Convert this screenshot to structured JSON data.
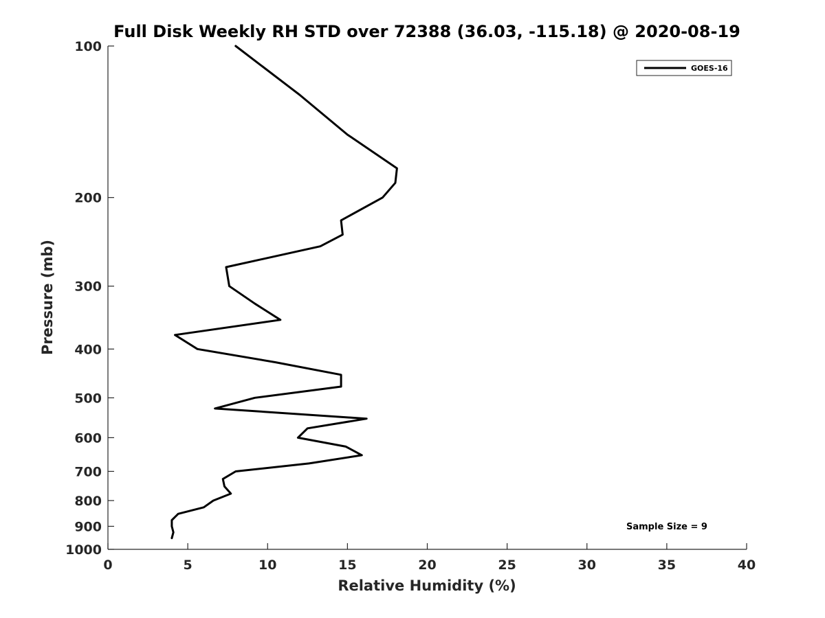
{
  "chart_data": {
    "type": "line",
    "title": "Full Disk Weekly RH STD over 72388 (36.03, -115.18) @ 2020-08-19",
    "xlabel": "Relative Humidity (%)",
    "ylabel": "Pressure (mb)",
    "xlim": [
      0,
      40
    ],
    "ylim": [
      1000,
      100
    ],
    "yscale": "log",
    "y_reversed": true,
    "xticks": [
      0,
      5,
      10,
      15,
      20,
      25,
      30,
      35,
      40
    ],
    "xtick_labels": [
      "0",
      "5",
      "10",
      "15",
      "20",
      "25",
      "30",
      "35",
      "40"
    ],
    "yticks": [
      100,
      200,
      300,
      400,
      500,
      600,
      700,
      800,
      900,
      1000
    ],
    "ytick_labels": [
      "100",
      "200",
      "300",
      "400",
      "500",
      "600",
      "700",
      "800",
      "900",
      "1000"
    ],
    "grid": false,
    "legend": {
      "position": "top-right",
      "entries": [
        "GOES-16"
      ]
    },
    "annotation": "Sample Size = 9",
    "series": [
      {
        "name": "GOES-16",
        "color": "#000000",
        "points": [
          {
            "x": 8.0,
            "p": 100
          },
          {
            "x": 12.0,
            "p": 125
          },
          {
            "x": 15.0,
            "p": 150
          },
          {
            "x": 18.1,
            "p": 175
          },
          {
            "x": 18.0,
            "p": 187
          },
          {
            "x": 17.2,
            "p": 200
          },
          {
            "x": 14.6,
            "p": 222
          },
          {
            "x": 14.7,
            "p": 237
          },
          {
            "x": 13.3,
            "p": 250
          },
          {
            "x": 7.4,
            "p": 275
          },
          {
            "x": 7.6,
            "p": 300
          },
          {
            "x": 9.2,
            "p": 325
          },
          {
            "x": 10.8,
            "p": 350
          },
          {
            "x": 4.2,
            "p": 375
          },
          {
            "x": 5.6,
            "p": 400
          },
          {
            "x": 10.5,
            "p": 425
          },
          {
            "x": 14.6,
            "p": 450
          },
          {
            "x": 14.6,
            "p": 475
          },
          {
            "x": 9.2,
            "p": 500
          },
          {
            "x": 6.7,
            "p": 525
          },
          {
            "x": 16.2,
            "p": 550
          },
          {
            "x": 12.5,
            "p": 575
          },
          {
            "x": 11.9,
            "p": 600
          },
          {
            "x": 14.9,
            "p": 625
          },
          {
            "x": 15.9,
            "p": 650
          },
          {
            "x": 12.6,
            "p": 675
          },
          {
            "x": 8.0,
            "p": 700
          },
          {
            "x": 7.2,
            "p": 725
          },
          {
            "x": 7.3,
            "p": 750
          },
          {
            "x": 7.7,
            "p": 775
          },
          {
            "x": 6.6,
            "p": 800
          },
          {
            "x": 6.0,
            "p": 825
          },
          {
            "x": 4.4,
            "p": 850
          },
          {
            "x": 4.0,
            "p": 875
          },
          {
            "x": 4.0,
            "p": 900
          },
          {
            "x": 4.1,
            "p": 925
          },
          {
            "x": 4.0,
            "p": 950
          }
        ]
      }
    ]
  }
}
